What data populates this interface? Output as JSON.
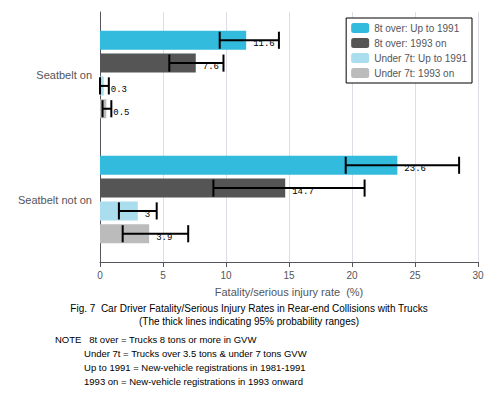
{
  "chart_data": {
    "type": "bar",
    "orientation": "horizontal",
    "title": "Fig. 7  Car Driver Fatality/Serious Injury Rates in Rear-end Collisions with Trucks",
    "subtitle": "(The thick lines indicating 95% probability ranges)",
    "annotations": [
      "NOTE   8t over = Trucks 8 tons or more in GVW",
      "           Under 7t = Trucks over 3.5 tons & under 7 tons GVW",
      "           Up to 1991 = New-vehicle registrations in 1981-1991",
      "           1993 on = New-vehicle registrations in 1993 onward"
    ],
    "xlabel": "Fatality/serious injury rate  (%)",
    "categories": [
      "Seatbelt on",
      "Seatbelt not on"
    ],
    "series": [
      {
        "name": "8t over: Up to 1991",
        "color": "#33bbdd",
        "values": [
          11.6,
          23.6
        ],
        "err_low": [
          9.5,
          19.5
        ],
        "err_high": [
          14.2,
          28.5
        ]
      },
      {
        "name": "8t over: 1993 on",
        "color": "#555555",
        "values": [
          7.6,
          14.7
        ],
        "err_low": [
          5.5,
          9.0
        ],
        "err_high": [
          9.8,
          21.0
        ]
      },
      {
        "name": "Under 7t: Up to 1991",
        "color": "#aaddee",
        "values": [
          0.3,
          3.0
        ],
        "err_low": [
          0.0,
          1.5
        ],
        "err_high": [
          0.7,
          4.5
        ]
      },
      {
        "name": "Under 7t: 1993 on",
        "color": "#bbbbbb",
        "values": [
          0.5,
          3.9
        ],
        "err_low": [
          0.2,
          1.8
        ],
        "err_high": [
          0.9,
          7.0
        ]
      }
    ],
    "xlim": [
      0,
      30
    ],
    "xticks": [
      0,
      5,
      10,
      15,
      20,
      25,
      30
    ],
    "grid": true,
    "legend": "upper right",
    "data_labels": true
  }
}
